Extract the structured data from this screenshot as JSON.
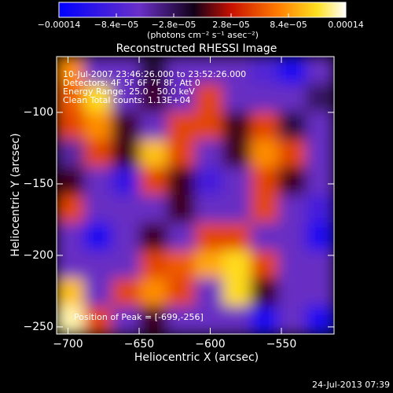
{
  "chart_data": {
    "type": "heatmap",
    "title": "Reconstructed RHESSI Image",
    "colorbar_label": "(photons cm⁻² s⁻¹ asec⁻²)",
    "xlabel": "Heliocentric X (arcsec)",
    "ylabel": "Heliocentric Y (arcsec)",
    "annotations": [
      "10-Jul-2007 23:46:26.000 to 23:52:26.000",
      "Detectors: 4F 5F 6F 7F 8F, Att 0",
      "Energy Range: 25.0 - 50.0 keV",
      "Clean    Total counts: 1.13E+04"
    ],
    "peak_label": "Position of Peak = [-699,-256]",
    "footer": "24-Jul-2013 07:39",
    "xlim": [
      -708,
      -513
    ],
    "ylim": [
      -255,
      -61
    ],
    "xticks": [
      {
        "value": -700,
        "label": "−700"
      },
      {
        "value": -650,
        "label": "−650"
      },
      {
        "value": -600,
        "label": "−600"
      },
      {
        "value": -550,
        "label": "−550"
      }
    ],
    "yticks": [
      {
        "value": -100,
        "label": "−100"
      },
      {
        "value": -150,
        "label": "−150"
      },
      {
        "value": -200,
        "label": "−200"
      },
      {
        "value": -250,
        "label": "−250"
      }
    ],
    "clim": [
      -0.00014,
      0.00014
    ],
    "cticks": [
      {
        "value": -0.00014,
        "label": "−0.00014"
      },
      {
        "value": -8.4e-05,
        "label": "−8.4e−05"
      },
      {
        "value": -2.8e-05,
        "label": "−2.8e−05"
      },
      {
        "value": 2.8e-05,
        "label": "2.8e−05"
      },
      {
        "value": 8.4e-05,
        "label": "8.4e−05"
      },
      {
        "value": 0.00014,
        "label": "0.00014"
      }
    ],
    "colormap": [
      [
        0,
        "#0000ff"
      ],
      [
        0.28,
        "#6a30c8"
      ],
      [
        0.47,
        "#120018"
      ],
      [
        0.6,
        "#c81000"
      ],
      [
        0.76,
        "#ff7a00"
      ],
      [
        0.9,
        "#ffe020"
      ],
      [
        1,
        "#ffffff"
      ]
    ],
    "z": [
      [
        8e-05,
        -6e-05,
        -6e-05,
        -2e-05,
        -6e-05,
        -6e-05,
        -6e-05,
        -8e-05,
        -0.00012,
        -6e-05
      ],
      [
        6e-05,
        0.00011,
        -6e-05,
        0,
        -6e-05,
        5e-05,
        -6e-05,
        -6e-05,
        -6e-05,
        -3e-05
      ],
      [
        5e-05,
        8e-05,
        0,
        -6e-05,
        5e-05,
        5e-05,
        0,
        5e-05,
        -2e-05,
        -6e-05
      ],
      [
        -5e-05,
        5e-05,
        0,
        0.0001,
        5e-05,
        -6e-05,
        0,
        8e-05,
        5e-05,
        -6e-05
      ],
      [
        0,
        -6e-05,
        -0.0001,
        5e-05,
        0,
        -9e-05,
        -6e-05,
        5e-05,
        0,
        -6e-05
      ],
      [
        5e-05,
        -6e-05,
        -6e-05,
        -6e-05,
        0,
        -6e-05,
        -6e-05,
        5e-05,
        -6e-05,
        -9e-05
      ],
      [
        -6e-05,
        -0.00012,
        -6e-05,
        0,
        -6e-05,
        5e-05,
        5e-05,
        -6e-05,
        -6e-05,
        -0.00012
      ],
      [
        -6e-05,
        -6e-05,
        -6e-05,
        5e-05,
        6e-05,
        9e-05,
        0.00011,
        5e-05,
        -6e-05,
        -6e-05
      ],
      [
        0.0001,
        -6e-05,
        5e-05,
        8e-05,
        5e-05,
        -6e-05,
        0.00011,
        0,
        -6e-05,
        -6e-05
      ],
      [
        0.00013,
        5e-05,
        -6e-05,
        0,
        -6e-05,
        -6e-05,
        -6e-05,
        -0.00012,
        -6e-05,
        -0.00012
      ]
    ]
  }
}
